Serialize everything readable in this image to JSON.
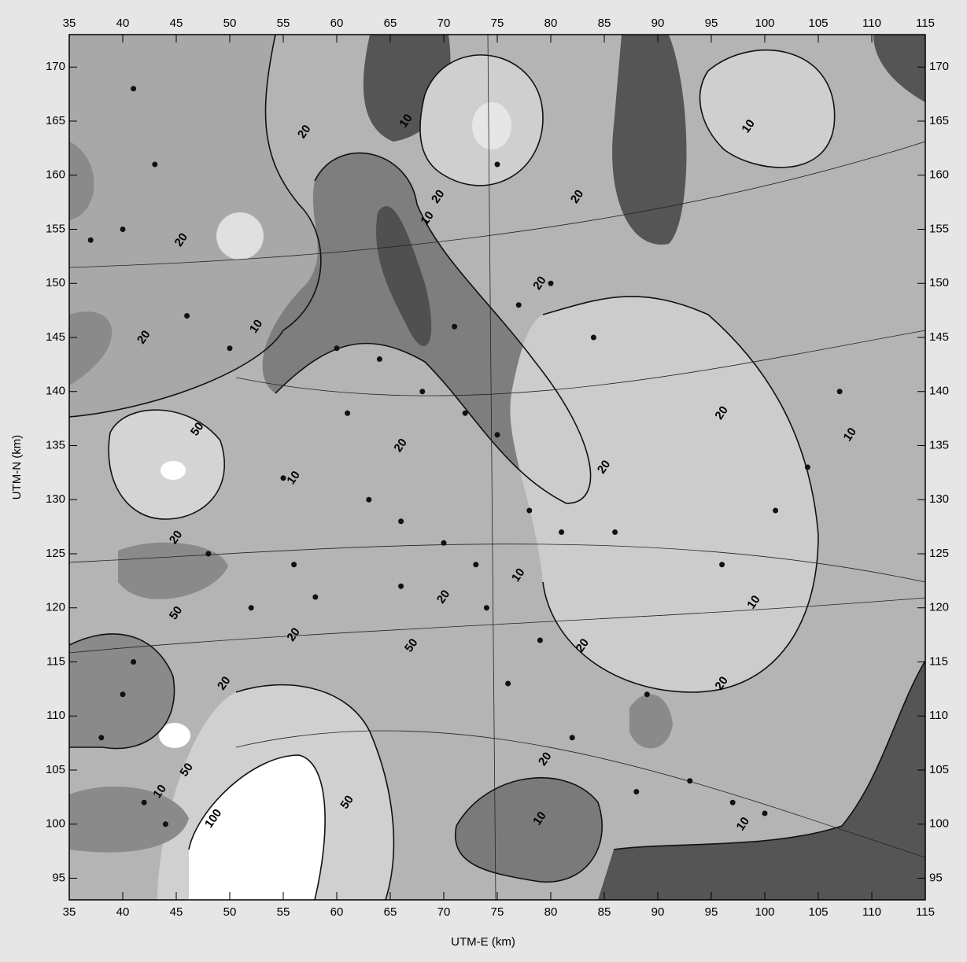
{
  "chart_data": {
    "type": "contour",
    "x_label": "UTM-E (km)",
    "y_label": "UTM-N (km)",
    "xlim": [
      35,
      115
    ],
    "ylim": [
      93,
      173
    ],
    "xticks": [
      35,
      40,
      45,
      50,
      55,
      60,
      65,
      70,
      75,
      80,
      85,
      90,
      95,
      100,
      105,
      110,
      115
    ],
    "yticks": [
      95,
      100,
      105,
      110,
      115,
      120,
      125,
      130,
      135,
      140,
      145,
      150,
      155,
      160,
      165,
      170
    ],
    "contour_labels": [
      {
        "label": "20",
        "x": 57,
        "y": 164
      },
      {
        "label": "10",
        "x": 66.5,
        "y": 165
      },
      {
        "label": "20",
        "x": 69.5,
        "y": 158
      },
      {
        "label": "10",
        "x": 68.5,
        "y": 156
      },
      {
        "label": "10",
        "x": 98.5,
        "y": 164.5
      },
      {
        "label": "20",
        "x": 82.5,
        "y": 158
      },
      {
        "label": "20",
        "x": 79,
        "y": 150
      },
      {
        "label": "20",
        "x": 45.5,
        "y": 154
      },
      {
        "label": "10",
        "x": 52.5,
        "y": 146
      },
      {
        "label": "20",
        "x": 42,
        "y": 145
      },
      {
        "label": "50",
        "x": 47,
        "y": 136.5
      },
      {
        "label": "10",
        "x": 56,
        "y": 132
      },
      {
        "label": "20",
        "x": 66,
        "y": 135
      },
      {
        "label": "20",
        "x": 85,
        "y": 133
      },
      {
        "label": "20",
        "x": 96,
        "y": 138
      },
      {
        "label": "10",
        "x": 108,
        "y": 136
      },
      {
        "label": "20",
        "x": 45,
        "y": 126.5
      },
      {
        "label": "50",
        "x": 45,
        "y": 119.5
      },
      {
        "label": "20",
        "x": 56,
        "y": 117.5
      },
      {
        "label": "20",
        "x": 70,
        "y": 121
      },
      {
        "label": "50",
        "x": 67,
        "y": 116.5
      },
      {
        "label": "20",
        "x": 83,
        "y": 116.5
      },
      {
        "label": "10",
        "x": 77,
        "y": 123
      },
      {
        "label": "10",
        "x": 99,
        "y": 120.5
      },
      {
        "label": "20",
        "x": 96,
        "y": 113
      },
      {
        "label": "20",
        "x": 49.5,
        "y": 113
      },
      {
        "label": "50",
        "x": 46,
        "y": 105
      },
      {
        "label": "100",
        "x": 48.5,
        "y": 100.5
      },
      {
        "label": "50",
        "x": 61,
        "y": 102
      },
      {
        "label": "20",
        "x": 79.5,
        "y": 106
      },
      {
        "label": "10",
        "x": 79,
        "y": 100.5
      },
      {
        "label": "10",
        "x": 98,
        "y": 100
      },
      {
        "label": "10",
        "x": 43.5,
        "y": 103
      }
    ],
    "points": {
      "x": [
        41,
        43,
        40,
        37,
        46,
        50,
        60,
        68,
        72,
        75,
        78,
        81,
        86,
        96,
        101,
        104,
        107,
        63,
        66,
        70,
        73,
        74,
        56,
        58,
        52,
        48,
        41,
        40,
        38,
        42,
        44,
        61,
        64,
        71,
        77,
        80,
        84,
        89,
        93,
        97,
        100,
        88,
        76,
        66,
        55,
        82,
        79,
        75
      ],
      "y": [
        168,
        161,
        155,
        154,
        147,
        144,
        144,
        140,
        138,
        136,
        129,
        127,
        127,
        124,
        129,
        133,
        140,
        130,
        128,
        126,
        124,
        120,
        124,
        121,
        120,
        125,
        115,
        112,
        108,
        102,
        100,
        138,
        143,
        146,
        148,
        150,
        145,
        112,
        104,
        102,
        101,
        103,
        113,
        122,
        132,
        108,
        117,
        161
      ]
    }
  }
}
